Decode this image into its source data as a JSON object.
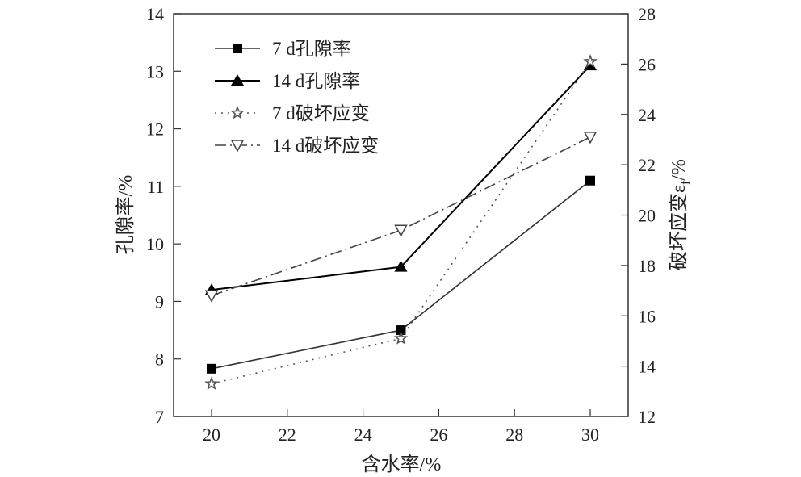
{
  "chart_data": {
    "type": "line",
    "title": "",
    "xlabel": "含水率/%",
    "ylabel": "孔隙率/%",
    "y2label": "破坏应变ε",
    "y2label_sub": "f",
    "y2label_suffix": "/%",
    "x": [
      20,
      25,
      30
    ],
    "xlim": [
      19,
      31
    ],
    "ylim": [
      7,
      14
    ],
    "y2lim": [
      12,
      28
    ],
    "xticks": [
      "20",
      "22",
      "24",
      "26",
      "28",
      "30"
    ],
    "yticks": [
      "7",
      "8",
      "9",
      "10",
      "11",
      "12",
      "13",
      "14"
    ],
    "y2ticks": [
      "12",
      "14",
      "16",
      "18",
      "20",
      "22",
      "24",
      "26",
      "28"
    ],
    "grid": false,
    "legend_position": "top-left",
    "series": [
      {
        "name": "7 d孔隙率",
        "axis": "left",
        "values": [
          7.83,
          8.5,
          11.1
        ],
        "marker": "square",
        "line": "solid",
        "color": "#333333"
      },
      {
        "name": "14 d孔隙率",
        "axis": "left",
        "values": [
          9.2,
          9.6,
          13.1
        ],
        "marker": "triangle-up",
        "line": "solid",
        "color": "#000000"
      },
      {
        "name": "7 d破坏应变",
        "axis": "right",
        "values": [
          13.3,
          15.1,
          26.1
        ],
        "marker": "star",
        "line": "dotted",
        "color": "#555555"
      },
      {
        "name": "14 d破坏应变",
        "axis": "right",
        "values": [
          16.8,
          19.4,
          23.1
        ],
        "marker": "triangle-down-open",
        "line": "dashdot",
        "color": "#444444"
      }
    ]
  }
}
